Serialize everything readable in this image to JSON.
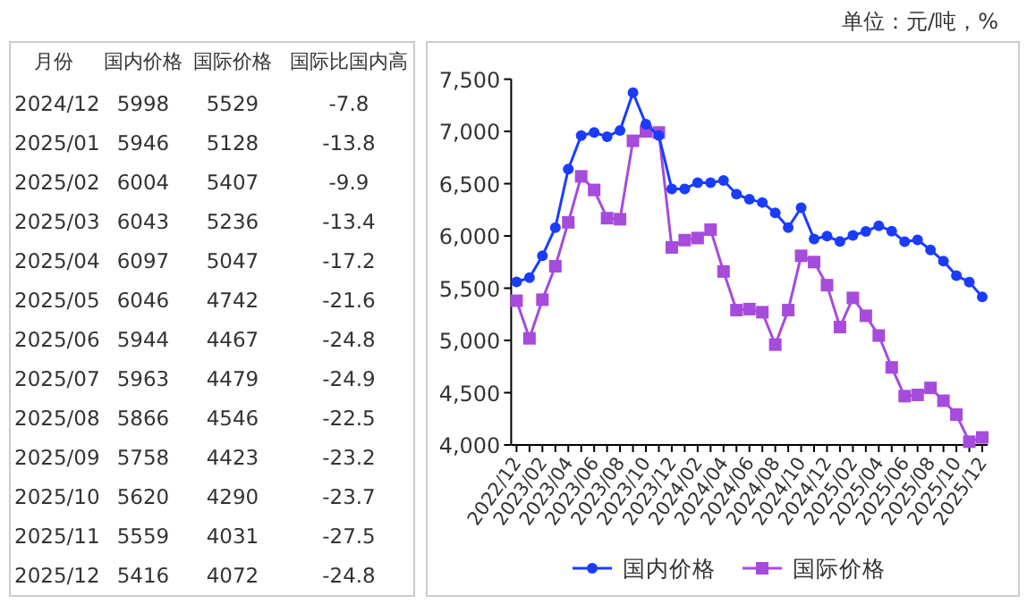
{
  "chart_data": [
    {
      "type": "other",
      "xlabel": "月份",
      "data_labels": true,
      "categories": [
        "2024/12",
        "2025/01",
        "2025/02",
        "2025/03",
        "2025/04",
        "2025/05",
        "2025/06",
        "2025/07",
        "2025/08",
        "2025/09",
        "2025/10",
        "2025/11",
        "2025/12"
      ],
      "series": [
        {
          "name": "国内价格",
          "values": [
            5998,
            5946,
            6004,
            6043,
            6097,
            6046,
            5944,
            5963,
            5866,
            5758,
            5620,
            5559,
            5416
          ]
        },
        {
          "name": "国际价格",
          "values": [
            5529,
            5128,
            5407,
            5236,
            5047,
            4742,
            4467,
            4479,
            4546,
            4423,
            4290,
            4031,
            4072
          ]
        },
        {
          "name": "国际比国内高",
          "values": [
            -7.8,
            -13.8,
            -9.9,
            -13.4,
            -17.2,
            -21.6,
            -24.8,
            -24.9,
            -22.5,
            -23.2,
            -23.7,
            -27.5,
            -24.8
          ]
        }
      ]
    },
    {
      "type": "line",
      "annotations": [
        "单位：元/吨，%"
      ],
      "legend": "bottom",
      "grid": false,
      "categories": [
        "2022/12",
        null,
        "2023/02",
        null,
        "2023/04",
        null,
        "2023/06",
        null,
        "2023/08",
        null,
        "2023/10",
        null,
        "2023/12",
        null,
        "2024/02",
        null,
        "2024/04",
        null,
        "2024/06",
        null,
        "2024/08",
        null,
        "2024/10",
        null,
        "2024/12",
        null,
        "2025/02",
        null,
        "2025/04",
        null,
        "2025/06",
        null,
        "2025/08",
        null,
        "2025/10",
        null,
        "2025/12"
      ],
      "ylim": [
        4000,
        7500
      ],
      "yticks": [
        {
          "value": 4000,
          "label": "4,000"
        },
        {
          "value": 4500,
          "label": "4,500"
        },
        {
          "value": 5000,
          "label": "5,000"
        },
        {
          "value": 5500,
          "label": "5,500"
        },
        {
          "value": 6000,
          "label": "6,000"
        },
        {
          "value": 6500,
          "label": "6,500"
        },
        {
          "value": 7000,
          "label": "7,000"
        },
        {
          "value": 7500,
          "label": "7,500"
        }
      ],
      "series": [
        {
          "name": "国内价格",
          "color": "#1a3cff",
          "marker": "circle",
          "values": [
            5560,
            5600,
            5810,
            6080,
            6640,
            6960,
            6990,
            6950,
            7010,
            7370,
            7070,
            6960,
            6450,
            6450,
            6510,
            6510,
            6530,
            6400,
            6350,
            6320,
            6220,
            6080,
            6270,
            5970,
            5998,
            5946,
            6004,
            6043,
            6097,
            6046,
            5944,
            5963,
            5866,
            5758,
            5620,
            5559,
            5416
          ]
        },
        {
          "name": "国际价格",
          "color": "#a64bdc",
          "marker": "square",
          "values": [
            5380,
            5020,
            5390,
            5710,
            6130,
            6570,
            6440,
            6170,
            6160,
            6910,
            7000,
            6990,
            5890,
            5960,
            5980,
            6060,
            5660,
            5290,
            5300,
            5270,
            4960,
            5290,
            5810,
            5750,
            5529,
            5128,
            5407,
            5236,
            5047,
            4742,
            4467,
            4479,
            4546,
            4423,
            4290,
            4031,
            4072
          ]
        }
      ]
    }
  ]
}
